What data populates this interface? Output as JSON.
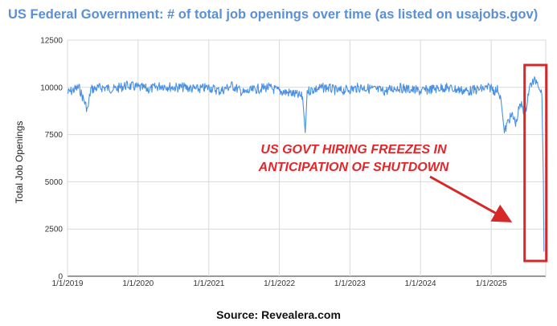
{
  "title": "US Federal Government: # of total job openings over time (as listed on usajobs.gov)",
  "source": "Source: Revealera.com",
  "chart_data": {
    "type": "line",
    "title": "US Federal Government: # of total job openings over time (as listed on usajobs.gov)",
    "xlabel": "",
    "ylabel": "Total Job Openings",
    "ylim": [
      0,
      12500
    ],
    "yticks": [
      0,
      2500,
      5000,
      7500,
      10000,
      12500
    ],
    "xticks": [
      "1/1/2019",
      "1/1/2020",
      "1/1/2021",
      "1/1/2022",
      "1/1/2023",
      "1/1/2024",
      "1/1/2025"
    ],
    "grid": true,
    "series_color": "#4a90e2",
    "series": [
      {
        "x": [
          "2019-01-01",
          "2019-03-01",
          "2019-04-15",
          "2019-05-01",
          "2019-07-01",
          "2019-09-01",
          "2019-11-01",
          "2020-01-01",
          "2020-03-01",
          "2020-05-01",
          "2020-07-01",
          "2020-09-01",
          "2020-11-01",
          "2021-01-01",
          "2021-03-01",
          "2021-05-01",
          "2021-07-01",
          "2021-09-01",
          "2021-11-01",
          "2022-01-01",
          "2022-03-01",
          "2022-05-01",
          "2022-05-15",
          "2022-05-25",
          "2022-07-01",
          "2022-09-01",
          "2022-11-01",
          "2023-01-01",
          "2023-03-01",
          "2023-05-01",
          "2023-07-01",
          "2023-09-01",
          "2023-11-01",
          "2024-01-01",
          "2024-03-01",
          "2024-05-01",
          "2024-07-01",
          "2024-09-01",
          "2024-11-01",
          "2025-01-01",
          "2025-01-20",
          "2025-02-05",
          "2025-02-20",
          "2025-03-10",
          "2025-04-01",
          "2025-04-20",
          "2025-05-10",
          "2025-05-25",
          "2025-06-10",
          "2025-06-25",
          "2025-07-10",
          "2025-07-25",
          "2025-08-10",
          "2025-08-25",
          "2025-09-10",
          "2025-09-20",
          "2025-09-28",
          "2025-10-01"
        ],
        "values": [
          9700,
          10000,
          8800,
          9900,
          10000,
          9900,
          10100,
          10000,
          9900,
          10100,
          10000,
          10000,
          9900,
          10000,
          9800,
          10100,
          9700,
          9900,
          10000,
          9800,
          9700,
          9500,
          7600,
          9800,
          9900,
          10000,
          9800,
          9900,
          10000,
          9900,
          9800,
          10000,
          9900,
          9800,
          9900,
          10000,
          9900,
          9800,
          9900,
          10000,
          9800,
          9900,
          9400,
          7600,
          8300,
          8500,
          8100,
          8900,
          9100,
          8500,
          9600,
          10200,
          10300,
          10400,
          10000,
          9600,
          5000,
          1300
        ]
      }
    ],
    "annotations": [
      "US GOVT HIRING FREEZES IN",
      "ANTICIPATION OF SHUTDOWN"
    ],
    "highlight_color": "#d62828",
    "arrow_color": "#d62828"
  }
}
